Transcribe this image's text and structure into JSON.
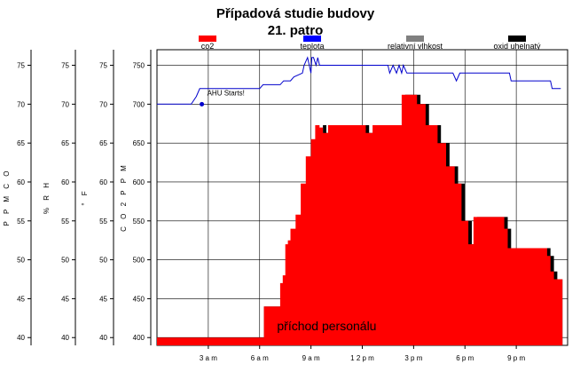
{
  "chart_data": {
    "type": "area",
    "title": "Případová studie budovy",
    "subtitle": "21. patro",
    "legend": [
      {
        "name": "co2",
        "color": "#ff0000"
      },
      {
        "name": "teplota",
        "color": "#0000ff"
      },
      {
        "name": "relativní vlhkost",
        "color": "#808080"
      },
      {
        "name": "oxid uhelnatý",
        "color": "#000000"
      }
    ],
    "axes": [
      {
        "label": "P P M C O",
        "ticks": [
          "40",
          "45",
          "50",
          "55",
          "60",
          "65",
          "70",
          "75"
        ],
        "ylim": [
          39,
          77
        ]
      },
      {
        "label": "% R H",
        "ticks": [
          "40",
          "45",
          "50",
          "55",
          "60",
          "65",
          "70",
          "75"
        ],
        "ylim": [
          39,
          77
        ]
      },
      {
        "label": "° F",
        "ticks": [
          "40",
          "45",
          "50",
          "55",
          "60",
          "65",
          "70",
          "75"
        ],
        "ylim": [
          39,
          77
        ]
      },
      {
        "label": "C O 2 P P M",
        "ticks": [
          "400",
          "450",
          "500",
          "550",
          "600",
          "650",
          "700",
          "750"
        ],
        "ylim": [
          390,
          770
        ]
      }
    ],
    "xlim": [
      0,
      24
    ],
    "x_ticks": [
      {
        "label": "3 a m",
        "x": 3
      },
      {
        "label": "6 a m",
        "x": 6
      },
      {
        "label": "9 a m",
        "x": 9
      },
      {
        "label": "1 2 p m",
        "x": 12
      },
      {
        "label": "3 p m",
        "x": 15
      },
      {
        "label": "6 p m",
        "x": 18
      },
      {
        "label": "9 p m",
        "x": 21
      }
    ],
    "grid": true,
    "co2": {
      "name": "co2",
      "x": [
        0,
        6.25,
        6.25,
        7.2,
        7.2,
        7.35,
        7.35,
        7.5,
        7.5,
        7.65,
        7.65,
        7.8,
        7.8,
        8.1,
        8.1,
        8.4,
        8.4,
        8.7,
        8.7,
        9.0,
        9.0,
        9.25,
        9.25,
        9.5,
        9.5,
        9.7,
        9.7,
        10.0,
        10.0,
        10.4,
        10.4,
        10.8,
        10.8,
        12.2,
        12.2,
        12.6,
        12.6,
        14.3,
        14.3,
        15.2,
        15.2,
        15.7,
        15.7,
        16.4,
        16.4,
        16.9,
        16.9,
        17.4,
        17.4,
        17.8,
        17.8,
        18.2,
        18.2,
        18.5,
        18.5,
        20.3,
        20.3,
        20.5,
        20.5,
        22.8,
        22.8,
        23.0,
        23.0,
        23.2,
        23.2,
        23.5,
        23.5,
        23.7
      ],
      "y": [
        400,
        400,
        440,
        440,
        470,
        470,
        480,
        480,
        520,
        520,
        525,
        525,
        540,
        540,
        558,
        558,
        598,
        598,
        633,
        633,
        655,
        655,
        673,
        673,
        670,
        670,
        663,
        663,
        673,
        673,
        673,
        673,
        673,
        673,
        663,
        663,
        673,
        673,
        712,
        712,
        700,
        700,
        673,
        673,
        650,
        650,
        620,
        620,
        598,
        598,
        550,
        550,
        520,
        520,
        555,
        555,
        540,
        540,
        515,
        515,
        505,
        505,
        485,
        485,
        475,
        475,
        475,
        475
      ]
    },
    "co": {
      "name": "oxid uhelnatý",
      "x": [
        0,
        6.25,
        6.25,
        7.4,
        7.4,
        7.6,
        7.6,
        7.8,
        7.8,
        8.0,
        8.0,
        8.3,
        8.3,
        8.6,
        8.6,
        8.9,
        8.9,
        9.2,
        9.2,
        9.45,
        9.45,
        9.7,
        9.7,
        9.9,
        9.9,
        10.2,
        10.2,
        10.6,
        10.6,
        11.0,
        11.0,
        12.4,
        12.4,
        12.8,
        12.8,
        14.5,
        14.5,
        15.4,
        15.4,
        15.9,
        15.9,
        16.6,
        16.6,
        17.1,
        17.1,
        17.6,
        17.6,
        18.0,
        18.0,
        18.4,
        18.4,
        18.7,
        18.7,
        20.5,
        20.5,
        20.7,
        20.7,
        23.0,
        23.0,
        23.2,
        23.2,
        23.4,
        23.4,
        23.7
      ],
      "y": [
        400,
        400,
        440,
        440,
        470,
        470,
        480,
        480,
        520,
        520,
        525,
        525,
        540,
        540,
        558,
        558,
        598,
        598,
        633,
        633,
        655,
        655,
        673,
        673,
        663,
        663,
        673,
        673,
        673,
        673,
        673,
        673,
        663,
        663,
        673,
        673,
        712,
        712,
        700,
        700,
        673,
        673,
        650,
        650,
        620,
        620,
        598,
        598,
        550,
        550,
        520,
        520,
        555,
        555,
        540,
        540,
        515,
        515,
        505,
        505,
        485,
        485,
        475,
        475
      ]
    },
    "temperature": {
      "name": "teplota",
      "x": [
        0,
        2.0,
        2.3,
        2.5,
        2.8,
        6.0,
        6.2,
        6.4,
        7.2,
        7.4,
        7.8,
        8.0,
        8.5,
        8.6,
        8.8,
        8.9,
        9.0,
        9.05,
        9.15,
        9.3,
        9.4,
        9.5,
        9.6,
        11.0,
        13.5,
        13.6,
        13.8,
        14.0,
        14.15,
        14.3,
        14.4,
        14.6,
        15.5,
        15.7,
        16.5,
        17.3,
        17.5,
        17.7,
        18.5,
        20.6,
        20.7,
        20.8,
        23.0,
        23.1,
        23.2,
        23.6
      ],
      "y": [
        70,
        70,
        71,
        72,
        72,
        72,
        72.5,
        72.5,
        72.5,
        73,
        73,
        73.5,
        74,
        75,
        76,
        75,
        74,
        76,
        76,
        75,
        76,
        75,
        75,
        75,
        75,
        74,
        75,
        74,
        75,
        74,
        75,
        74,
        74,
        74,
        74,
        74,
        73,
        74,
        74,
        74,
        73,
        73,
        73,
        72,
        72,
        72
      ]
    },
    "annotations": [
      {
        "text": "AHU Starts!",
        "x": 2.0,
        "y": 70
      },
      {
        "text": "příchod personálu",
        "x": 6.5,
        "y": 400
      }
    ]
  }
}
